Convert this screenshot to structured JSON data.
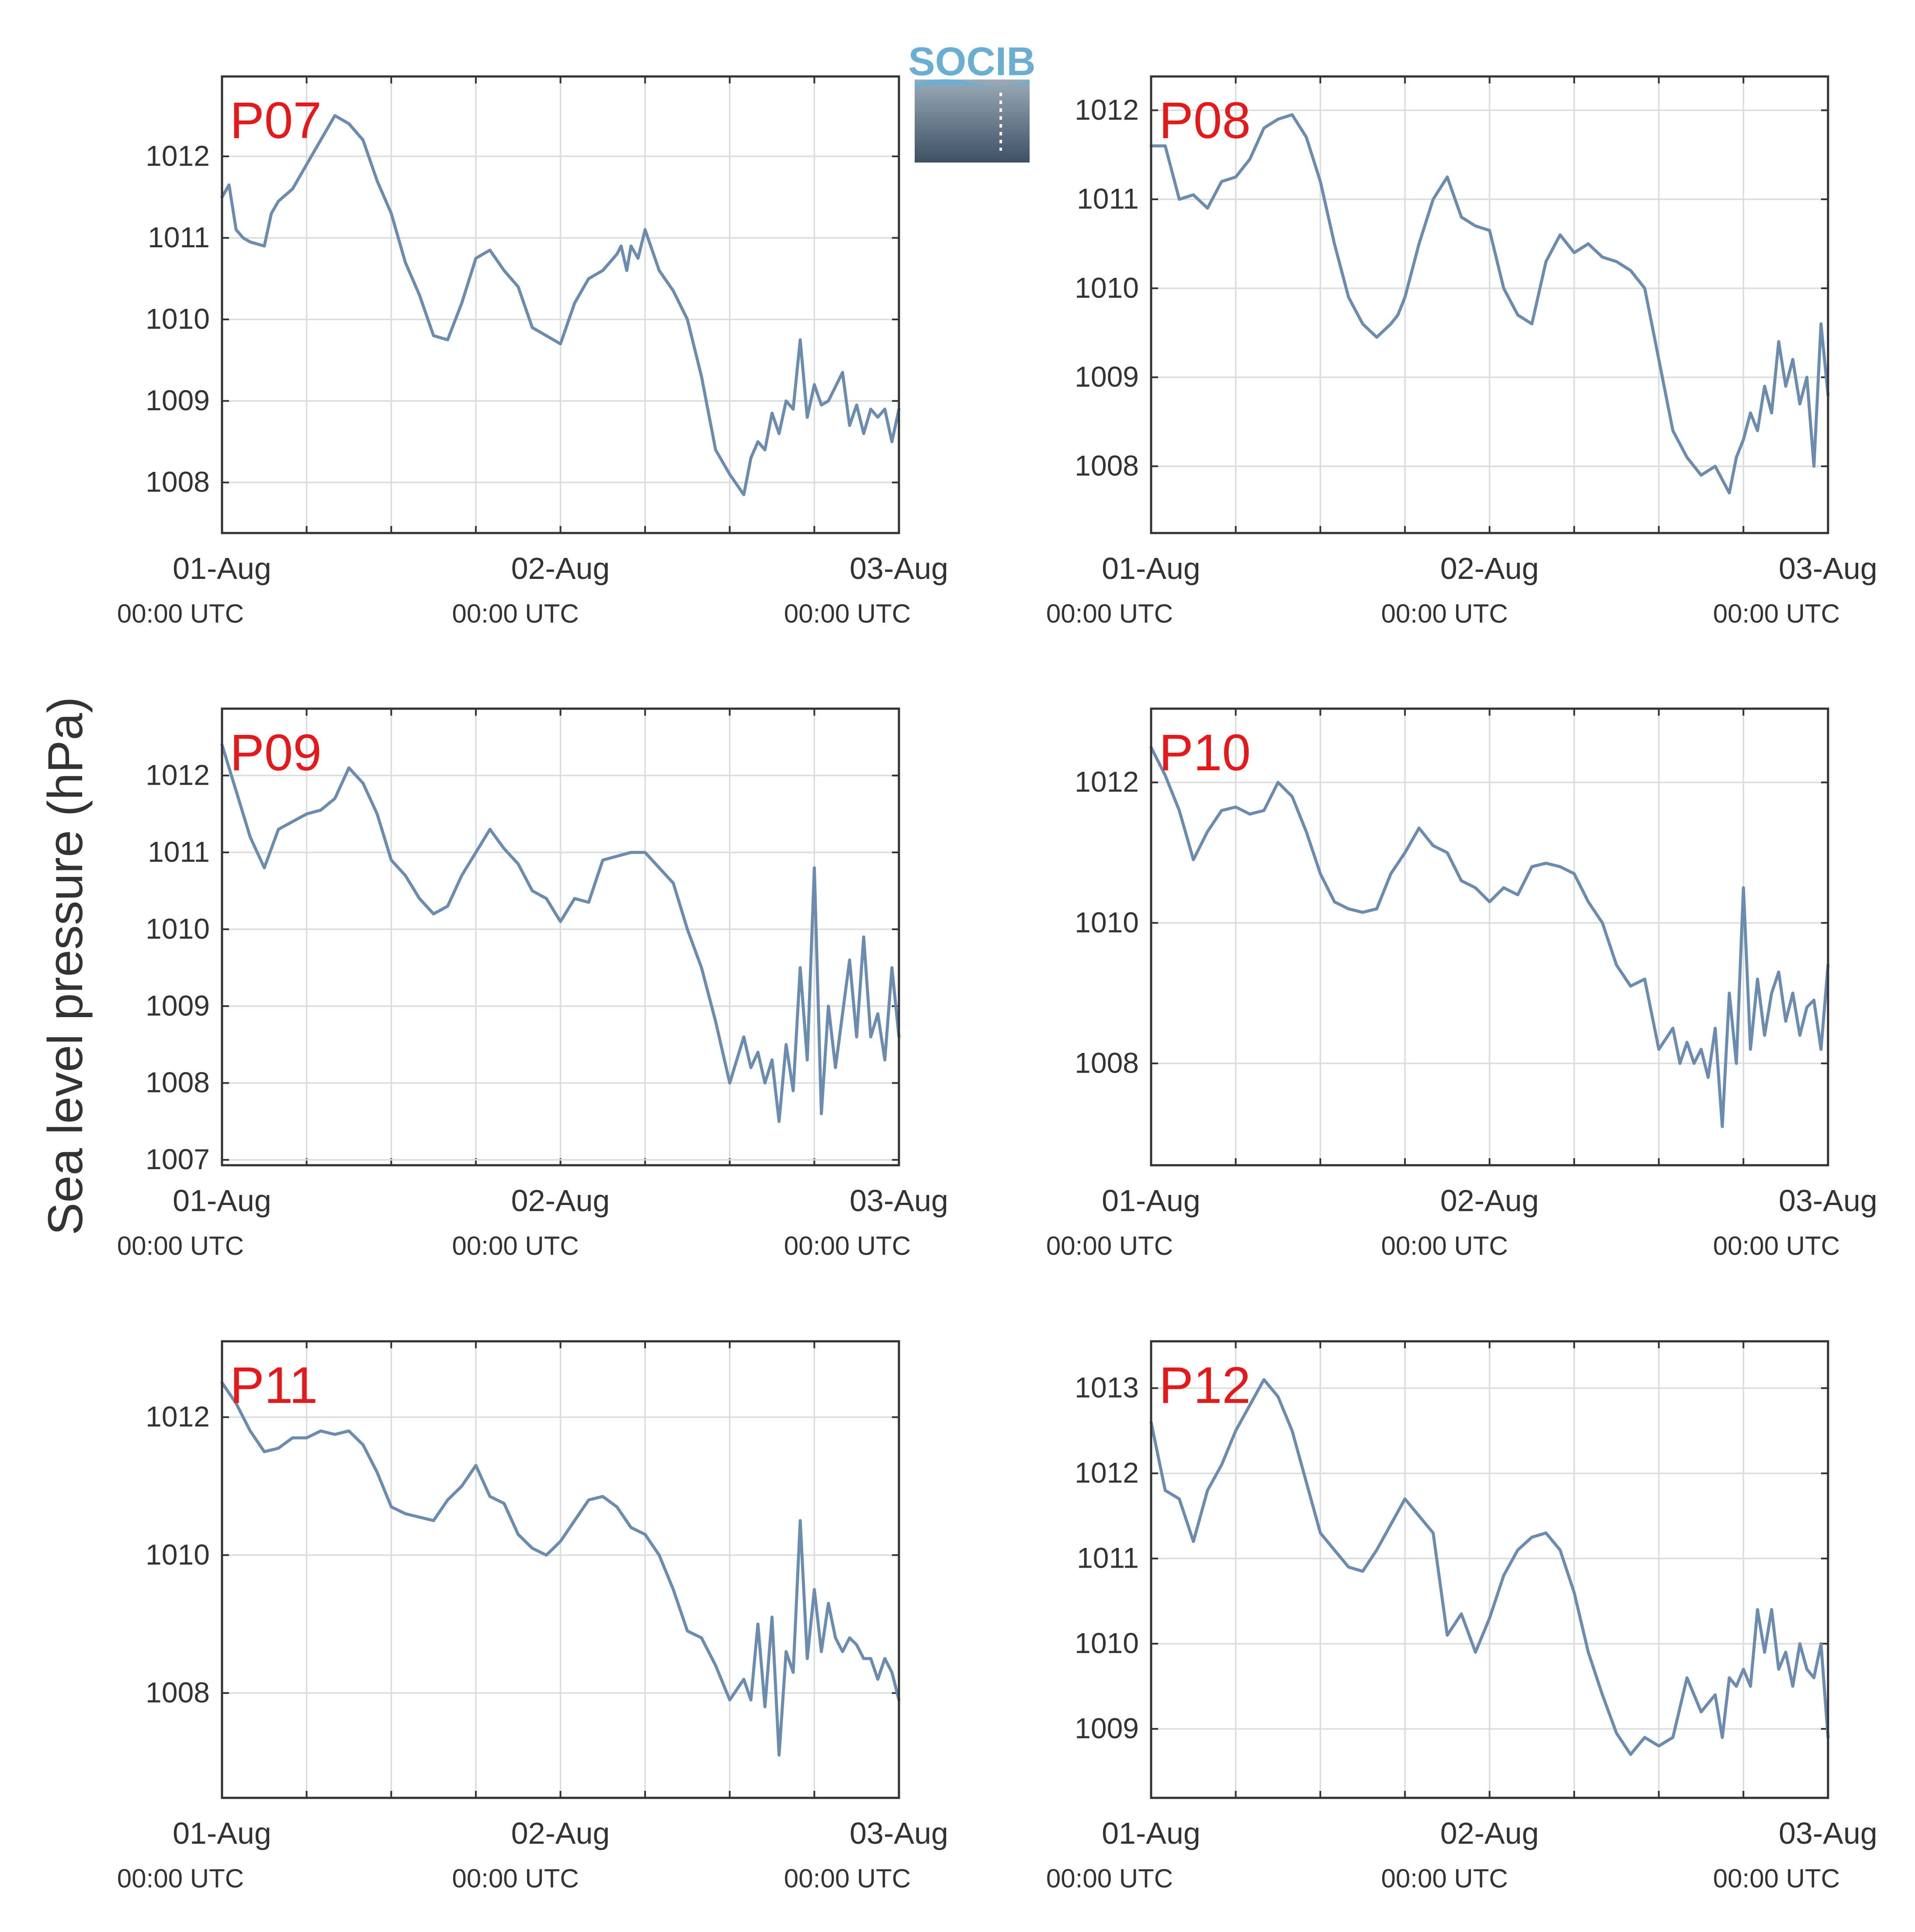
{
  "figure": {
    "ylabel": "Sea level pressure (hPa)",
    "logo_text": "SOCIB",
    "line_color": "#6b8cae",
    "title_color": "#e31a1c",
    "x_tick_dates": [
      "01-Aug",
      "02-Aug",
      "03-Aug"
    ],
    "x_tick_times": [
      "00:00 UTC",
      "00:00 UTC",
      "00:00 UTC"
    ]
  },
  "chart_data": [
    {
      "type": "line",
      "title": "P07",
      "xlabel": "",
      "ylabel": "Sea level pressure (hPa)",
      "x_unit": "hours since 01-Aug 00:00 UTC",
      "xlim": [
        0,
        48
      ],
      "ylim": [
        1007.38,
        1012.98
      ],
      "yticks": [
        1008,
        1009,
        1010,
        1011,
        1012
      ],
      "x": [
        0,
        0.5,
        1,
        1.5,
        2,
        3,
        3.5,
        4,
        5,
        6,
        7,
        8,
        9,
        10,
        11,
        12,
        13,
        14,
        15,
        16,
        17,
        18,
        19,
        20,
        21,
        22,
        23,
        24,
        25,
        26,
        27,
        28,
        28.3,
        28.7,
        29,
        29.5,
        30,
        31,
        32,
        33,
        34,
        35,
        36,
        37,
        37.5,
        38,
        38.5,
        39,
        39.5,
        40,
        40.5,
        41,
        41.5,
        42,
        42.5,
        43,
        44,
        44.5,
        45,
        45.5,
        46,
        46.5,
        47,
        47.5,
        48
      ],
      "values": [
        1011.5,
        1011.65,
        1011.1,
        1011.0,
        1010.95,
        1010.9,
        1011.3,
        1011.45,
        1011.6,
        1011.9,
        1012.2,
        1012.5,
        1012.4,
        1012.2,
        1011.7,
        1011.3,
        1010.7,
        1010.3,
        1009.8,
        1009.75,
        1010.2,
        1010.75,
        1010.85,
        1010.6,
        1010.4,
        1009.9,
        1009.8,
        1009.7,
        1010.2,
        1010.5,
        1010.6,
        1010.8,
        1010.9,
        1010.6,
        1010.9,
        1010.75,
        1011.1,
        1010.6,
        1010.35,
        1010.0,
        1009.3,
        1008.4,
        1008.1,
        1007.85,
        1008.3,
        1008.5,
        1008.4,
        1008.85,
        1008.6,
        1009.0,
        1008.9,
        1009.75,
        1008.8,
        1009.2,
        1008.95,
        1009.0,
        1009.35,
        1008.7,
        1008.95,
        1008.6,
        1008.9,
        1008.8,
        1008.9,
        1008.5,
        1008.9
      ]
    },
    {
      "type": "line",
      "title": "P08",
      "xlabel": "",
      "ylabel": "Sea level pressure (hPa)",
      "x_unit": "hours since 01-Aug 00:00 UTC",
      "xlim": [
        0,
        48
      ],
      "ylim": [
        1007.25,
        1012.38
      ],
      "yticks": [
        1008,
        1009,
        1010,
        1011,
        1012
      ],
      "x": [
        0,
        1,
        2,
        3,
        4,
        5,
        6,
        7,
        8,
        9,
        10,
        11,
        12,
        13,
        14,
        15,
        16,
        17,
        17.5,
        18,
        19,
        20,
        21,
        22,
        23,
        24,
        25,
        26,
        27,
        28,
        29,
        30,
        31,
        32,
        33,
        34,
        35,
        36,
        37,
        38,
        39,
        40,
        41,
        41.5,
        42,
        42.5,
        43,
        43.5,
        44,
        44.5,
        45,
        45.5,
        46,
        46.5,
        47,
        47.5,
        48
      ],
      "values": [
        1011.6,
        1011.6,
        1011.0,
        1011.05,
        1010.9,
        1011.2,
        1011.25,
        1011.45,
        1011.8,
        1011.9,
        1011.95,
        1011.7,
        1011.2,
        1010.5,
        1009.9,
        1009.6,
        1009.45,
        1009.6,
        1009.7,
        1009.9,
        1010.5,
        1011.0,
        1011.25,
        1010.8,
        1010.7,
        1010.65,
        1010.0,
        1009.7,
        1009.6,
        1010.3,
        1010.6,
        1010.4,
        1010.5,
        1010.35,
        1010.3,
        1010.2,
        1010.0,
        1009.2,
        1008.4,
        1008.1,
        1007.9,
        1008.0,
        1007.7,
        1008.1,
        1008.3,
        1008.6,
        1008.4,
        1008.9,
        1008.6,
        1009.4,
        1008.9,
        1009.2,
        1008.7,
        1009.0,
        1008.0,
        1009.6,
        1008.8
      ]
    },
    {
      "type": "line",
      "title": "P09",
      "xlabel": "",
      "ylabel": "Sea level pressure (hPa)",
      "x_unit": "hours since 01-Aug 00:00 UTC",
      "xlim": [
        0,
        48
      ],
      "ylim": [
        1006.93,
        1012.87
      ],
      "yticks": [
        1007,
        1008,
        1009,
        1010,
        1011,
        1012
      ],
      "x": [
        0,
        1,
        2,
        3,
        4,
        5,
        6,
        7,
        8,
        9,
        10,
        11,
        12,
        13,
        14,
        15,
        16,
        17,
        18,
        19,
        20,
        21,
        22,
        23,
        24,
        25,
        26,
        27,
        28,
        29,
        30,
        31,
        32,
        33,
        34,
        35,
        36,
        37,
        37.5,
        38,
        38.5,
        39,
        39.5,
        40,
        40.5,
        41,
        41.5,
        42,
        42.5,
        43,
        43.5,
        44,
        44.5,
        45,
        45.5,
        46,
        46.5,
        47,
        47.5,
        48
      ],
      "values": [
        1012.4,
        1011.8,
        1011.2,
        1010.8,
        1011.3,
        1011.4,
        1011.5,
        1011.55,
        1011.7,
        1012.1,
        1011.9,
        1011.5,
        1010.9,
        1010.7,
        1010.4,
        1010.2,
        1010.3,
        1010.7,
        1011.0,
        1011.3,
        1011.05,
        1010.85,
        1010.5,
        1010.4,
        1010.1,
        1010.4,
        1010.35,
        1010.9,
        1010.95,
        1011.0,
        1011.0,
        1010.8,
        1010.6,
        1010.0,
        1009.5,
        1008.8,
        1008.0,
        1008.6,
        1008.2,
        1008.4,
        1008.0,
        1008.3,
        1007.5,
        1008.5,
        1007.9,
        1009.5,
        1008.3,
        1010.8,
        1007.6,
        1009.0,
        1008.2,
        1008.9,
        1009.6,
        1008.6,
        1009.9,
        1008.6,
        1008.9,
        1008.3,
        1009.5,
        1008.6
      ]
    },
    {
      "type": "line",
      "title": "P10",
      "xlabel": "",
      "ylabel": "Sea level pressure (hPa)",
      "x_unit": "hours since 01-Aug 00:00 UTC",
      "xlim": [
        0,
        48
      ],
      "ylim": [
        1006.55,
        1013.05
      ],
      "yticks": [
        1008,
        1010,
        1012
      ],
      "x": [
        0,
        1,
        2,
        3,
        4,
        5,
        6,
        7,
        8,
        9,
        10,
        11,
        12,
        13,
        14,
        15,
        16,
        17,
        18,
        19,
        20,
        21,
        22,
        23,
        24,
        25,
        26,
        27,
        28,
        29,
        30,
        31,
        32,
        33,
        34,
        35,
        36,
        37,
        37.5,
        38,
        38.5,
        39,
        39.5,
        40,
        40.5,
        41,
        41.5,
        42,
        42.5,
        43,
        43.5,
        44,
        44.5,
        45,
        45.5,
        46,
        46.5,
        47,
        47.5,
        48
      ],
      "values": [
        1012.5,
        1012.1,
        1011.6,
        1010.9,
        1011.3,
        1011.6,
        1011.65,
        1011.55,
        1011.6,
        1012.0,
        1011.8,
        1011.3,
        1010.7,
        1010.3,
        1010.2,
        1010.15,
        1010.2,
        1010.7,
        1011.0,
        1011.35,
        1011.1,
        1011.0,
        1010.6,
        1010.5,
        1010.3,
        1010.5,
        1010.4,
        1010.8,
        1010.85,
        1010.8,
        1010.7,
        1010.3,
        1010.0,
        1009.4,
        1009.1,
        1009.2,
        1008.2,
        1008.5,
        1008.0,
        1008.3,
        1008.0,
        1008.2,
        1007.8,
        1008.5,
        1007.1,
        1009.0,
        1008.0,
        1010.5,
        1008.2,
        1009.2,
        1008.4,
        1009.0,
        1009.3,
        1008.6,
        1009.0,
        1008.4,
        1008.8,
        1008.9,
        1008.2,
        1009.4
      ]
    },
    {
      "type": "line",
      "title": "P11",
      "xlabel": "",
      "ylabel": "Sea level pressure (hPa)",
      "x_unit": "hours since 01-Aug 00:00 UTC",
      "xlim": [
        0,
        48
      ],
      "ylim": [
        1006.48,
        1013.1
      ],
      "yticks": [
        1008,
        1010,
        1012
      ],
      "x": [
        0,
        1,
        2,
        3,
        4,
        5,
        6,
        7,
        8,
        9,
        10,
        11,
        12,
        13,
        14,
        15,
        16,
        17,
        18,
        19,
        20,
        21,
        22,
        23,
        24,
        25,
        26,
        27,
        28,
        29,
        30,
        31,
        32,
        33,
        34,
        35,
        36,
        37,
        37.5,
        38,
        38.5,
        39,
        39.5,
        40,
        40.5,
        41,
        41.5,
        42,
        42.5,
        43,
        43.5,
        44,
        44.5,
        45,
        45.5,
        46,
        46.5,
        47,
        47.5,
        48
      ],
      "values": [
        1012.5,
        1012.2,
        1011.8,
        1011.5,
        1011.55,
        1011.7,
        1011.7,
        1011.8,
        1011.75,
        1011.8,
        1011.6,
        1011.2,
        1010.7,
        1010.6,
        1010.55,
        1010.5,
        1010.8,
        1011.0,
        1011.3,
        1010.85,
        1010.75,
        1010.3,
        1010.1,
        1010.0,
        1010.2,
        1010.5,
        1010.8,
        1010.85,
        1010.7,
        1010.4,
        1010.3,
        1010.0,
        1009.5,
        1008.9,
        1008.8,
        1008.4,
        1007.9,
        1008.2,
        1007.9,
        1009.0,
        1007.8,
        1009.1,
        1007.1,
        1008.6,
        1008.3,
        1010.5,
        1008.5,
        1009.5,
        1008.6,
        1009.3,
        1008.8,
        1008.6,
        1008.8,
        1008.7,
        1008.5,
        1008.5,
        1008.2,
        1008.5,
        1008.3,
        1007.9
      ]
    },
    {
      "type": "line",
      "title": "P12",
      "xlabel": "",
      "ylabel": "Sea level pressure (hPa)",
      "x_unit": "hours since 01-Aug 00:00 UTC",
      "xlim": [
        0,
        48
      ],
      "ylim": [
        1008.19,
        1013.55
      ],
      "yticks": [
        1009,
        1010,
        1011,
        1012,
        1013
      ],
      "x": [
        0,
        1,
        2,
        3,
        4,
        5,
        6,
        7,
        8,
        9,
        10,
        11,
        12,
        13,
        14,
        15,
        16,
        17,
        18,
        19,
        20,
        21,
        22,
        23,
        24,
        25,
        26,
        27,
        28,
        29,
        30,
        31,
        32,
        33,
        34,
        35,
        36,
        37,
        38,
        39,
        40,
        40.5,
        41,
        41.5,
        42,
        42.5,
        43,
        43.5,
        44,
        44.5,
        45,
        45.5,
        46,
        46.5,
        47,
        47.5,
        48
      ],
      "values": [
        1012.6,
        1011.8,
        1011.7,
        1011.2,
        1011.8,
        1012.1,
        1012.5,
        1012.8,
        1013.1,
        1012.9,
        1012.5,
        1011.9,
        1011.3,
        1011.1,
        1010.9,
        1010.85,
        1011.1,
        1011.4,
        1011.7,
        1011.5,
        1011.3,
        1010.1,
        1010.35,
        1009.9,
        1010.3,
        1010.8,
        1011.1,
        1011.25,
        1011.3,
        1011.1,
        1010.6,
        1009.9,
        1009.4,
        1008.95,
        1008.7,
        1008.9,
        1008.8,
        1008.9,
        1009.6,
        1009.2,
        1009.4,
        1008.9,
        1009.6,
        1009.5,
        1009.7,
        1009.5,
        1010.4,
        1009.9,
        1010.4,
        1009.7,
        1009.9,
        1009.5,
        1010.0,
        1009.7,
        1009.6,
        1010.0,
        1008.9
      ]
    }
  ]
}
